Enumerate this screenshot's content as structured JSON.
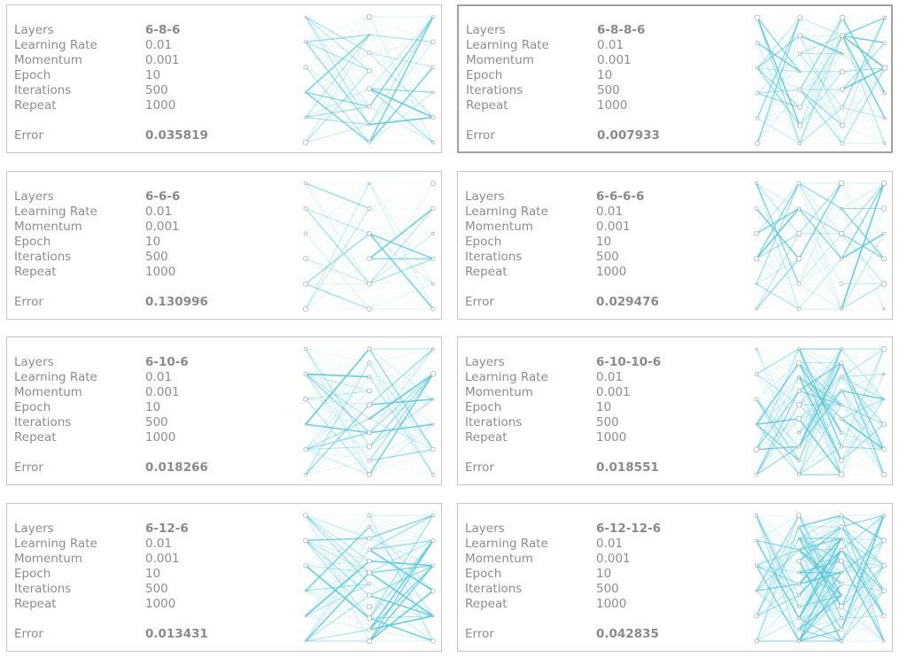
{
  "labels": {
    "layers": "Layers",
    "learning_rate": "Learning Rate",
    "momentum": "Momentum",
    "epoch": "Epoch",
    "iterations": "Iterations",
    "repeat": "Repeat",
    "error": "Error"
  },
  "colors": {
    "edge": "#5cc8d8",
    "node": "#999999",
    "border": "#c4c4c4",
    "selected_border": "#a0a0a0"
  },
  "cards": [
    {
      "layers": "6-8-6",
      "learning_rate": "0.01",
      "momentum": "0.001",
      "epoch": "10",
      "iterations": "500",
      "repeat": "1000",
      "error": "0.035819",
      "selected": false
    },
    {
      "layers": "6-8-8-6",
      "learning_rate": "0.01",
      "momentum": "0.001",
      "epoch": "10",
      "iterations": "500",
      "repeat": "1000",
      "error": "0.007933",
      "selected": true
    },
    {
      "layers": "6-6-6",
      "learning_rate": "0.01",
      "momentum": "0.001",
      "epoch": "10",
      "iterations": "500",
      "repeat": "1000",
      "error": "0.130996",
      "selected": false
    },
    {
      "layers": "6-6-6-6",
      "learning_rate": "0.01",
      "momentum": "0.001",
      "epoch": "10",
      "iterations": "500",
      "repeat": "1000",
      "error": "0.029476",
      "selected": false
    },
    {
      "layers": "6-10-6",
      "learning_rate": "0.01",
      "momentum": "0.001",
      "epoch": "10",
      "iterations": "500",
      "repeat": "1000",
      "error": "0.018266",
      "selected": false
    },
    {
      "layers": "6-10-10-6",
      "learning_rate": "0.01",
      "momentum": "0.001",
      "epoch": "10",
      "iterations": "500",
      "repeat": "1000",
      "error": "0.018551",
      "selected": false
    },
    {
      "layers": "6-12-6",
      "learning_rate": "0.01",
      "momentum": "0.001",
      "epoch": "10",
      "iterations": "500",
      "repeat": "1000",
      "error": "0.013431",
      "selected": false
    },
    {
      "layers": "6-12-12-6",
      "learning_rate": "0.01",
      "momentum": "0.001",
      "epoch": "10",
      "iterations": "500",
      "repeat": "1000",
      "error": "0.042835",
      "selected": false
    }
  ]
}
